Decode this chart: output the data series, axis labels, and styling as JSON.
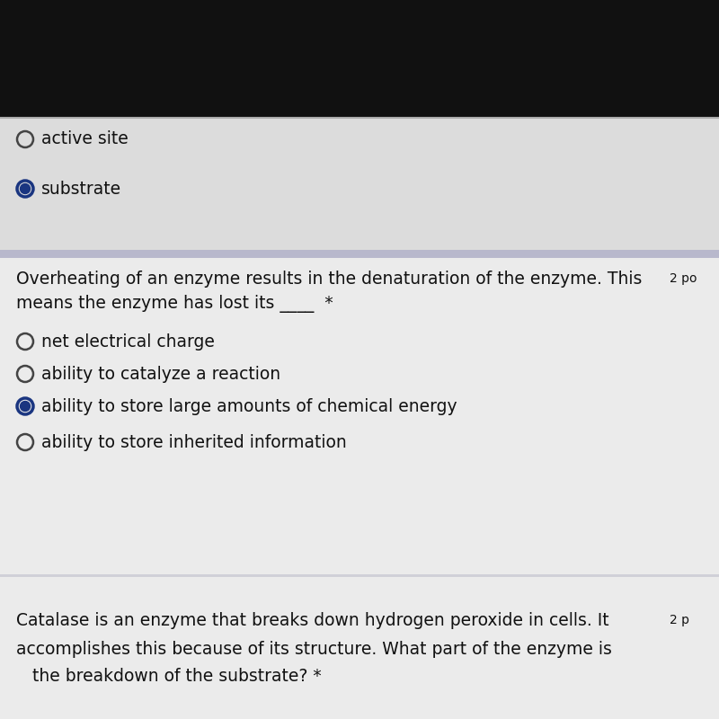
{
  "bg_dark": "#111111",
  "bg_section1": "#dcdcdc",
  "bg_divider": "#b8b8cc",
  "bg_section2": "#ebebeb",
  "bg_section3": "#ebebeb",
  "bg_section_separator": "#d0d0d8",
  "section1_options": [
    {
      "text": "active site",
      "selected": false
    },
    {
      "text": "substrate",
      "selected": true
    }
  ],
  "question_text_line1": "Overheating of an enzyme results in the denaturation of the enzyme. This",
  "question_text_line2": "means the enzyme has lost its ____  *",
  "question_points": "2 po",
  "section2_options": [
    {
      "text": "net electrical charge",
      "selected": false
    },
    {
      "text": "ability to catalyze a reaction",
      "selected": false
    },
    {
      "text": "ability to store large amounts of chemical energy",
      "selected": true
    },
    {
      "text": "ability to store inherited information",
      "selected": false
    }
  ],
  "bottom_text_line1": "Catalase is an enzyme that breaks down hydrogen peroxide in cells. It",
  "bottom_text_line2": "accomplishes this because of its structure. What part of the enzyme is",
  "bottom_text_line3": "   the breakdown of the substrate? *",
  "bottom_points": "2 p",
  "radio_unselected_color": "#444444",
  "radio_selected_outer": "#1a3580",
  "radio_selected_inner": "#1a3580",
  "text_color": "#111111",
  "font_size_main": 13.5,
  "font_size_q": 13.5
}
